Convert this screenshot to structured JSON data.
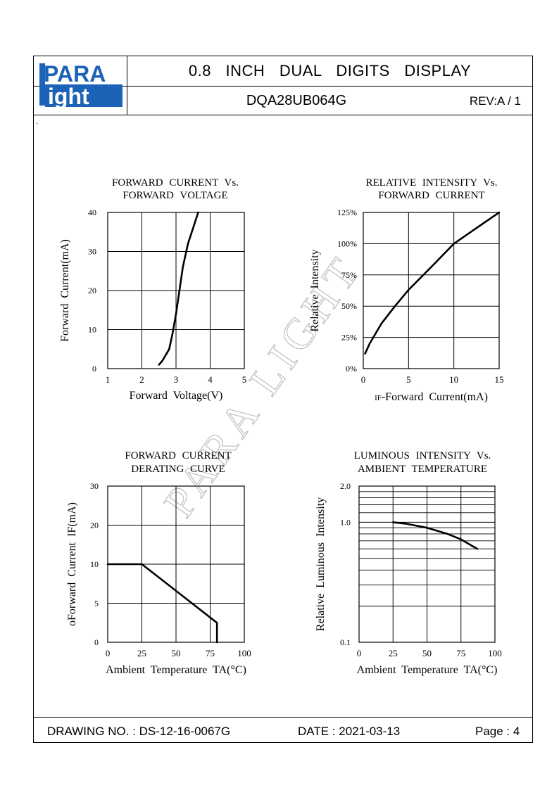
{
  "header": {
    "logo_top": "PARA",
    "logo_bottom": "ight",
    "logo_letter": "L",
    "title": "0.8 INCH DUAL DIGITS DISPLAY",
    "part_number": "DQA28UB064G",
    "revision": "REV:A / 1",
    "stray_mark": "`"
  },
  "footer": {
    "drawing_no": "DRAWING NO. : DS-12-16-0067G",
    "date": "DATE : 2021-03-13",
    "page": "Page : 4"
  },
  "watermark": "PARA LIGHT",
  "chart_data": [
    {
      "type": "line",
      "title": "FORWARD CURRENT Vs. FORWARD VOLTAGE",
      "title_lines": [
        "FORWARD CURRENT Vs.",
        "FORWARD VOLTAGE"
      ],
      "xlabel": "Forward Voltage(V)",
      "ylabel": "Forward Current(mA)",
      "xlim": [
        1,
        5
      ],
      "ylim": [
        0,
        40
      ],
      "x_ticks": [
        "1",
        "2",
        "3",
        "4",
        "5"
      ],
      "y_ticks": [
        "0",
        "10",
        "20",
        "30",
        "40"
      ],
      "grid": true,
      "series": [
        {
          "x": [
            2.5,
            2.6,
            2.8,
            2.9,
            3.0,
            3.1,
            3.2,
            3.35,
            3.5,
            3.65
          ],
          "y": [
            1,
            2,
            5,
            9,
            14,
            20,
            26,
            32,
            36,
            40
          ]
        }
      ]
    },
    {
      "type": "line",
      "title": "RELATIVE INTENSITY Vs. FORWARD CURRENT",
      "title_lines": [
        "RELATIVE INTENSITY Vs.",
        "FORWARD CURRENT"
      ],
      "xlabel_prefix": "IF",
      "xlabel": "-Forward Current(mA)",
      "ylabel": "Relative Intensity",
      "xlim": [
        0,
        15
      ],
      "ylim": [
        0,
        125
      ],
      "x_ticks": [
        "0",
        "5",
        "10",
        "15"
      ],
      "y_ticks": [
        "0%",
        "25%",
        "50%",
        "75%",
        "100%",
        "125%"
      ],
      "grid": true,
      "series": [
        {
          "x": [
            0.2,
            0.7,
            2,
            3.5,
            5,
            6.5,
            8,
            10,
            12,
            15
          ],
          "y": [
            12,
            20,
            36,
            50,
            63,
            74,
            85,
            100,
            110,
            125
          ]
        }
      ]
    },
    {
      "type": "line",
      "title": "FORWARD CURRENT DERATING CURVE",
      "title_lines": [
        "FORWARD CURRENT",
        "DERATING CURVE"
      ],
      "xlabel": "Ambient Temperature TA(°C)",
      "ylabel": "Forward Current IF(mA)",
      "ylabel_marker": "o",
      "xlim": [
        0,
        100
      ],
      "y_ticks": [
        "0",
        "5",
        "10",
        "20",
        "30"
      ],
      "x_ticks": [
        "0",
        "25",
        "50",
        "75",
        "100"
      ],
      "grid": true,
      "series": [
        {
          "x": [
            0,
            25,
            80,
            80
          ],
          "y": [
            10,
            10,
            2.5,
            0
          ]
        }
      ]
    },
    {
      "type": "line",
      "title": "LUMINOUS INTENSITY Vs. AMBIENT TEMPERATURE",
      "title_lines": [
        "LUMINOUS INTENSITY Vs.",
        "AMBIENT TEMPERATURE"
      ],
      "xlabel": "Ambient Temperature TA(°C)",
      "ylabel": "Relative Luminous Intensity",
      "xlim": [
        0,
        100
      ],
      "ylim": [
        0.1,
        2.0
      ],
      "yscale": "log",
      "x_ticks": [
        "0",
        "25",
        "50",
        "75",
        "100"
      ],
      "y_ticks": [
        "0.1",
        "1.0",
        "2.0"
      ],
      "grid": true,
      "series": [
        {
          "x": [
            25,
            35,
            50,
            65,
            75,
            87
          ],
          "y": [
            1.0,
            0.97,
            0.9,
            0.8,
            0.72,
            0.6
          ]
        }
      ]
    }
  ]
}
